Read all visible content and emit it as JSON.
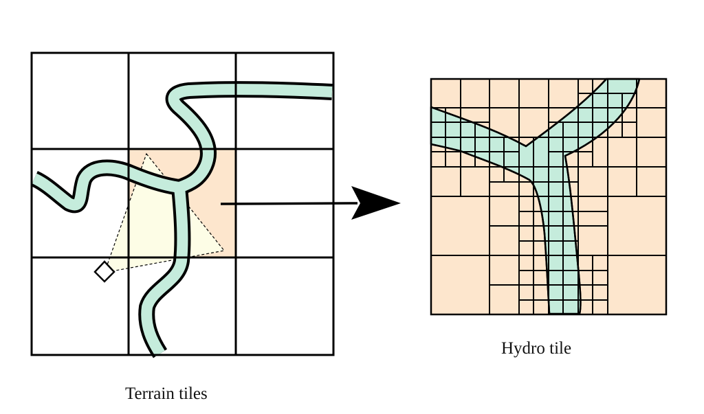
{
  "captions": {
    "terrain": "Terrain tiles",
    "hydro": "Hydro tile"
  },
  "colors": {
    "water": "#c5ecdc",
    "tile_highlight": "#fde6cd",
    "hydro_fill": "#fde6cd",
    "triangle_fill": "#fdfde6",
    "line": "#000000"
  },
  "icons": {
    "arrow": "arrow-right-icon",
    "marker": "diamond-marker-icon"
  }
}
